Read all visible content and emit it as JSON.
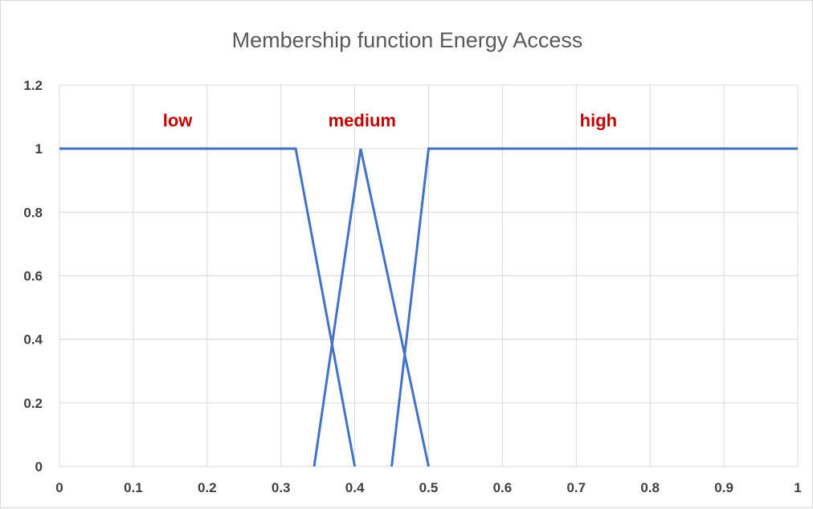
{
  "chart_data": {
    "type": "line",
    "title": "Membership function Energy Access",
    "xlabel": "",
    "ylabel": "",
    "xlim": [
      0,
      1
    ],
    "ylim": [
      0,
      1.2
    ],
    "x_ticks": [
      "0",
      "0.1",
      "0.2",
      "0.3",
      "0.4",
      "0.5",
      "0.6",
      "0.7",
      "0.8",
      "0.9",
      "1"
    ],
    "y_ticks": [
      "0",
      "0.2",
      "0.4",
      "0.6",
      "0.8",
      "1",
      "1.2"
    ],
    "grid": true,
    "legend": "none",
    "line_color": "#4472c4",
    "annotation_color": "#c00000",
    "series": [
      {
        "x": [
          0,
          0.32,
          0.4
        ],
        "y": [
          1,
          1,
          0
        ]
      },
      {
        "x": [
          0.345,
          0.408,
          0.5
        ],
        "y": [
          0,
          1,
          0
        ]
      },
      {
        "x": [
          0.45,
          0.5,
          1
        ],
        "y": [
          0,
          1,
          1
        ]
      }
    ],
    "annotations": [
      {
        "text": "low",
        "x": 0.16,
        "y": 1.09
      },
      {
        "text": "medium",
        "x": 0.41,
        "y": 1.09
      },
      {
        "text": "high",
        "x": 0.73,
        "y": 1.09
      }
    ]
  }
}
